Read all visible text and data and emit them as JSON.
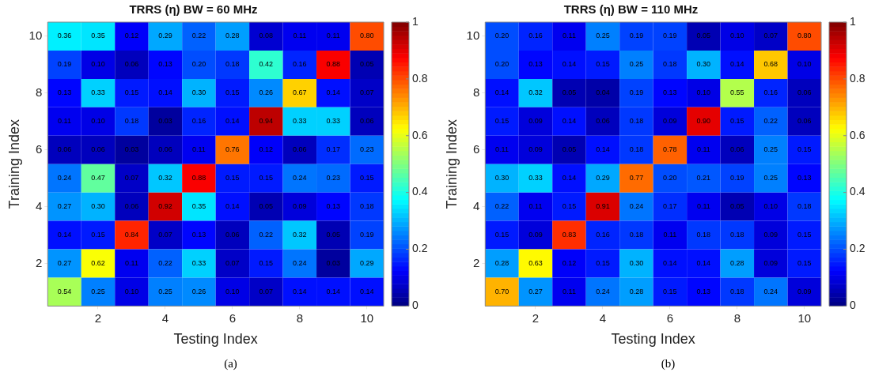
{
  "chart_data": [
    {
      "type": "heatmap",
      "title": "TRRS (η) BW = 60 MHz",
      "xlabel": "Testing Index",
      "ylabel": "Training Index",
      "categories": [
        null,
        "2",
        null,
        "4",
        null,
        "6",
        null,
        "8",
        null,
        "10"
      ],
      "y_categories": [
        "10",
        null,
        "8",
        null,
        "6",
        null,
        "4",
        null,
        "2",
        null
      ],
      "cells": [
        [
          0.36,
          0.35,
          0.12,
          0.29,
          0.22,
          0.28,
          0.08,
          0.11,
          0.11,
          0.8
        ],
        [
          0.19,
          0.1,
          0.06,
          0.13,
          0.2,
          0.18,
          0.42,
          0.16,
          0.88,
          0.05
        ],
        [
          0.13,
          0.33,
          0.15,
          0.14,
          0.3,
          0.15,
          0.26,
          0.67,
          0.14,
          0.07
        ],
        [
          0.11,
          0.1,
          0.18,
          0.03,
          0.16,
          0.14,
          0.94,
          0.33,
          0.33,
          0.06
        ],
        [
          0.06,
          0.06,
          0.03,
          0.06,
          0.11,
          0.76,
          0.12,
          0.06,
          0.17,
          0.23
        ],
        [
          0.24,
          0.47,
          0.07,
          0.32,
          0.88,
          0.15,
          0.15,
          0.24,
          0.23,
          0.15
        ],
        [
          0.27,
          0.3,
          0.06,
          0.92,
          0.35,
          0.14,
          0.05,
          0.09,
          0.13,
          0.18
        ],
        [
          0.14,
          0.15,
          0.84,
          0.07,
          0.13,
          0.06,
          0.22,
          0.32,
          0.05,
          0.19
        ],
        [
          0.27,
          0.62,
          0.11,
          0.22,
          0.33,
          0.07,
          0.15,
          0.24,
          0.03,
          0.29
        ],
        [
          0.54,
          0.25,
          0.1,
          0.25,
          0.26,
          0.1,
          0.07,
          0.14,
          0.14,
          0.14
        ]
      ],
      "cell_labels": [
        [
          "0.36",
          "0.35",
          "0.12",
          "0.29",
          "0.22",
          "0.28",
          "0.08",
          "0.11",
          "0.11",
          "0.80"
        ],
        [
          "0.19",
          "0.10",
          "0.06",
          "0.13",
          "0.20",
          "0.18",
          "0.42",
          "0.16",
          "0.88",
          "0.05"
        ],
        [
          "0.13",
          "0.33",
          "0.15",
          "0.14",
          "0.30",
          "0.15",
          "0.26",
          "0.67",
          "0.14",
          "0.07"
        ],
        [
          "0.11",
          "0.10",
          "0.18",
          "0.03",
          "0.16",
          "0.14",
          "0.94",
          "0.33",
          "0.33",
          "0.06"
        ],
        [
          "0.06",
          "0.06",
          "0.03",
          "0.06",
          "0.11",
          "0.76",
          "0.12",
          "0.06",
          "0.17",
          "0.23"
        ],
        [
          "0.24",
          "0.47",
          "0.07",
          "0.32",
          "0.88",
          "0.15",
          "0.15",
          "0.24",
          "0.23",
          "0.15"
        ],
        [
          "0.27",
          "0.30",
          "0.06",
          "0.92",
          "0.35",
          "0.14",
          "0.05",
          "0.09",
          "0.13",
          "0.18"
        ],
        [
          "0.14",
          "0.15",
          "0.84",
          "0.07",
          "0.13",
          "0.06",
          "0.22",
          "0.32",
          "0.05",
          "0.19"
        ],
        [
          "0.27",
          "0.62",
          "0.11",
          "0.22",
          "0.33",
          "0.07",
          "0.15",
          "0.24",
          "0.03",
          "0.29"
        ],
        [
          "0.54",
          "0.25",
          "0.10",
          "0.25",
          "0.26",
          "0.10",
          "0.07",
          "0.14",
          "0.14",
          "0.14"
        ]
      ],
      "clim": [
        0,
        1
      ],
      "cticks": [
        0,
        0.2,
        0.4,
        0.6,
        0.8,
        1
      ],
      "data_labels": true,
      "annotations": [
        "(a)"
      ]
    },
    {
      "type": "heatmap",
      "title": "TRRS (η) BW = 110 MHz",
      "xlabel": "Testing Index",
      "ylabel": "Training Index",
      "categories": [
        null,
        "2",
        null,
        "4",
        null,
        "6",
        null,
        "8",
        null,
        "10"
      ],
      "y_categories": [
        "10",
        null,
        "8",
        null,
        "6",
        null,
        "4",
        null,
        "2",
        null
      ],
      "cells": [
        [
          0.2,
          0.16,
          0.11,
          0.25,
          0.19,
          0.19,
          0.05,
          0.1,
          0.07,
          0.8
        ],
        [
          0.2,
          0.13,
          0.14,
          0.15,
          0.25,
          0.18,
          0.3,
          0.14,
          0.68,
          0.1
        ],
        [
          0.14,
          0.32,
          0.05,
          0.04,
          0.19,
          0.13,
          0.1,
          0.55,
          0.16,
          0.06
        ],
        [
          0.15,
          0.09,
          0.14,
          0.06,
          0.18,
          0.09,
          0.9,
          0.15,
          0.22,
          0.06
        ],
        [
          0.11,
          0.09,
          0.05,
          0.14,
          0.18,
          0.78,
          0.11,
          0.06,
          0.25,
          0.15
        ],
        [
          0.3,
          0.33,
          0.14,
          0.29,
          0.77,
          0.2,
          0.21,
          0.19,
          0.25,
          0.13
        ],
        [
          0.22,
          0.11,
          0.15,
          0.91,
          0.24,
          0.17,
          0.11,
          0.05,
          0.1,
          0.18
        ],
        [
          0.15,
          0.09,
          0.83,
          0.16,
          0.18,
          0.11,
          0.18,
          0.18,
          0.09,
          0.15
        ],
        [
          0.28,
          0.63,
          0.12,
          0.15,
          0.3,
          0.14,
          0.14,
          0.28,
          0.09,
          0.15
        ],
        [
          0.7,
          0.27,
          0.11,
          0.24,
          0.28,
          0.15,
          0.13,
          0.18,
          0.24,
          0.09
        ]
      ],
      "cell_labels": [
        [
          "0.20",
          "0.16",
          "0.11",
          "0.25",
          "0.19",
          "0.19",
          "0.05",
          "0.10",
          "0.07",
          "0.80"
        ],
        [
          "0.20",
          "0.13",
          "0.14",
          "0.15",
          "0.25",
          "0.18",
          "0.30",
          "0.14",
          "0.68",
          "0.10"
        ],
        [
          "0.14",
          "0.32",
          "0.05",
          "0.04",
          "0.19",
          "0.13",
          "0.10",
          "0.55",
          "0.16",
          "0.06"
        ],
        [
          "0.15",
          "0.09",
          "0.14",
          "0.06",
          "0.18",
          "0.09",
          "0.90",
          "0.15",
          "0.22",
          "0.06"
        ],
        [
          "0.11",
          "0.09",
          "0.05",
          "0.14",
          "0.18",
          "0.78",
          "0.11",
          "0.06",
          "0.25",
          "0.15"
        ],
        [
          "0.30",
          "0.33",
          "0.14",
          "0.29",
          "0.77",
          "0.20",
          "0.21",
          "0.19",
          "0.25",
          "0.13"
        ],
        [
          "0.22",
          "0.11",
          "0.15",
          "0.91",
          "0.24",
          "0.17",
          "0.11",
          "0.05",
          "0.10",
          "0.18"
        ],
        [
          "0.15",
          "0.09",
          "0.83",
          "0.16",
          "0.18",
          "0.11",
          "0.18",
          "0.18",
          "0.09",
          "0.15"
        ],
        [
          "0.28",
          "0.63",
          "0.12",
          "0.15",
          "0.30",
          "0.14",
          "0.14",
          "0.28",
          "0.09",
          "0.15"
        ],
        [
          "0.70",
          "0.27",
          "0.11",
          "0.24",
          "0.28",
          "0.15",
          "0.13",
          "0.18",
          "0.24",
          "0.09"
        ]
      ],
      "clim": [
        0,
        1
      ],
      "cticks": [
        0,
        0.2,
        0.4,
        0.6,
        0.8,
        1
      ],
      "data_labels": true,
      "annotations": [
        "(b)"
      ]
    }
  ]
}
